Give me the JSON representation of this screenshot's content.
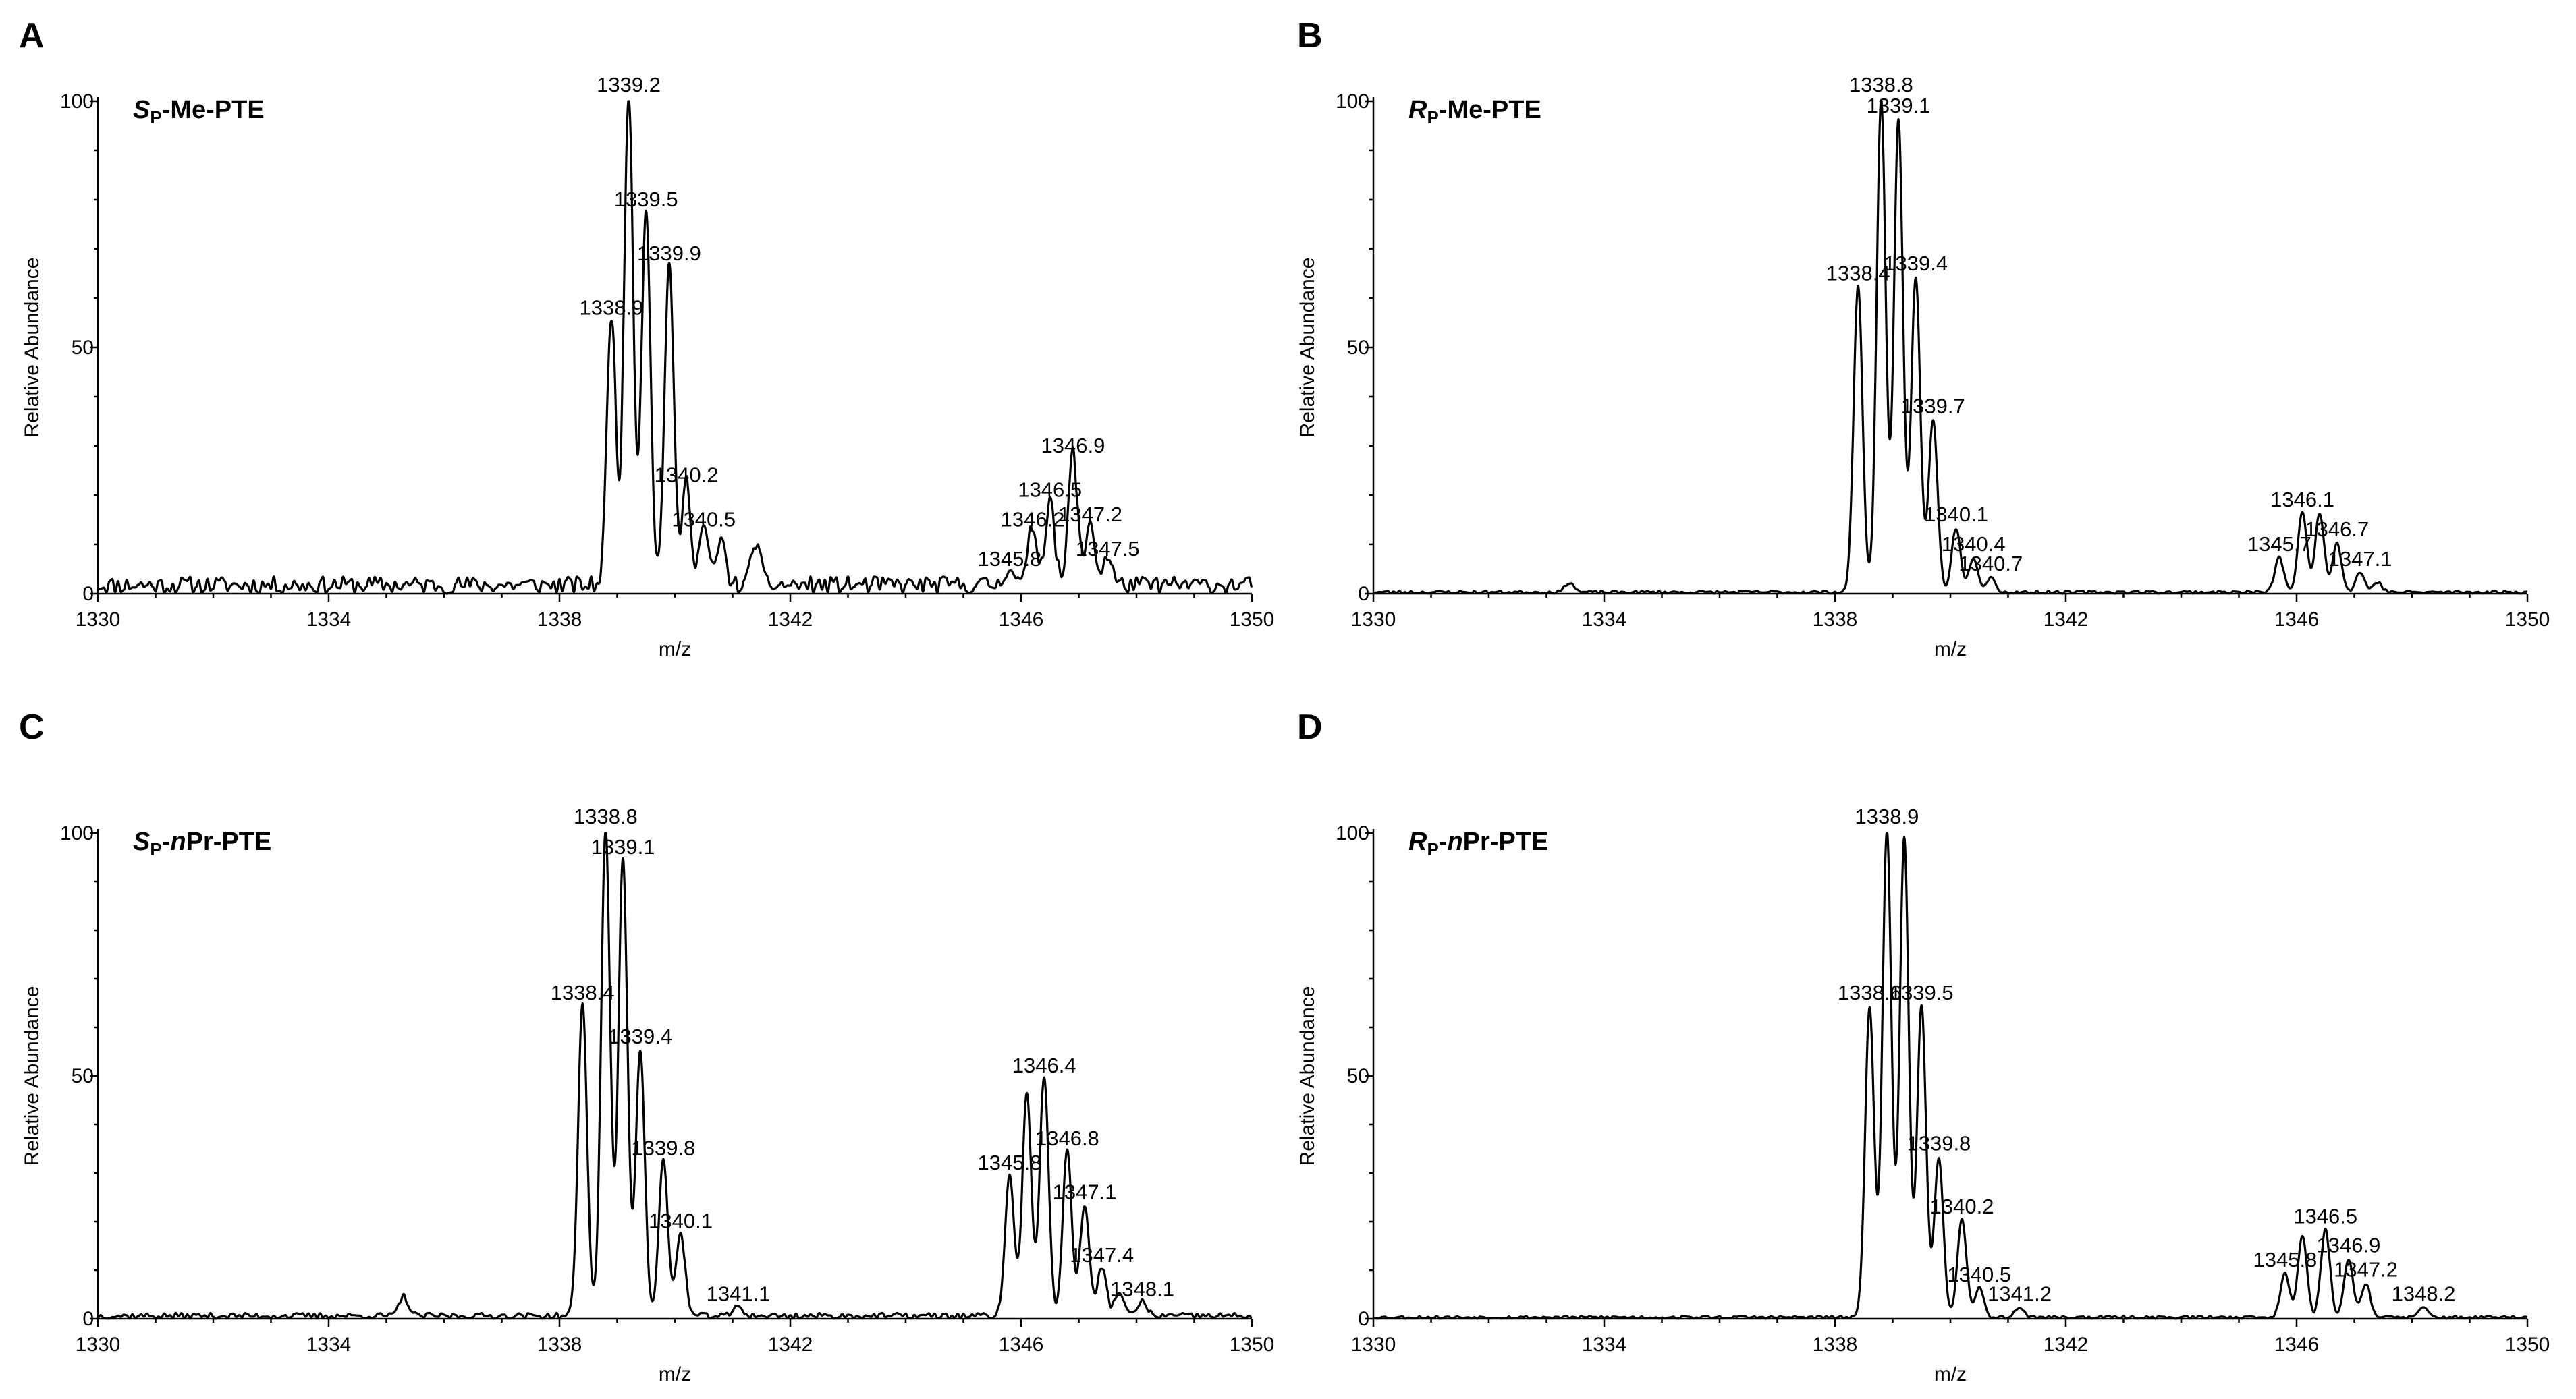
{
  "chart_data": [
    {
      "type": "line",
      "panel": "A",
      "title_parts": [
        {
          "text": "S",
          "style": "italic"
        },
        {
          "text": "P",
          "style": "sub"
        },
        {
          "text": "-Me-PTE",
          "style": "normal"
        }
      ],
      "xlabel": "m/z",
      "ylabel": "Relative Abundance",
      "xlim": [
        1330,
        1350
      ],
      "ylim": [
        0,
        100
      ],
      "xticks": [
        "1330",
        "1334",
        "1338",
        "1342",
        "1346",
        "1350"
      ],
      "yticks": [
        "0",
        "50",
        "100"
      ],
      "noise": 3.5,
      "noise_seed": 11,
      "series": [
        {
          "name": "spectrum",
          "peaks": [
            {
              "mz": 1338.9,
              "intensity": 55,
              "label": "1338.9"
            },
            {
              "mz": 1339.2,
              "intensity": 100,
              "label": "1339.2"
            },
            {
              "mz": 1339.5,
              "intensity": 77,
              "label": "1339.5"
            },
            {
              "mz": 1339.9,
              "intensity": 66,
              "label": "1339.9"
            },
            {
              "mz": 1340.2,
              "intensity": 21,
              "label": "1340.2"
            },
            {
              "mz": 1340.5,
              "intensity": 12,
              "label": "1340.5"
            },
            {
              "mz": 1340.8,
              "intensity": 9
            },
            {
              "mz": 1341.4,
              "intensity": 9
            },
            {
              "mz": 1345.8,
              "intensity": 4,
              "label": "1345.8"
            },
            {
              "mz": 1346.2,
              "intensity": 12,
              "label": "1346.2"
            },
            {
              "mz": 1346.5,
              "intensity": 18,
              "label": "1346.5"
            },
            {
              "mz": 1346.9,
              "intensity": 27,
              "label": "1346.9"
            },
            {
              "mz": 1347.2,
              "intensity": 13,
              "label": "1347.2"
            },
            {
              "mz": 1347.5,
              "intensity": 6,
              "label": "1347.5"
            }
          ]
        }
      ]
    },
    {
      "type": "line",
      "panel": "B",
      "title_parts": [
        {
          "text": "R",
          "style": "italic"
        },
        {
          "text": "P",
          "style": "sub"
        },
        {
          "text": "-Me-PTE",
          "style": "normal"
        }
      ],
      "xlabel": "m/z",
      "ylabel": "Relative Abundance",
      "xlim": [
        1330,
        1350
      ],
      "ylim": [
        0,
        100
      ],
      "xticks": [
        "1330",
        "1334",
        "1338",
        "1342",
        "1346",
        "1350"
      ],
      "yticks": [
        "0",
        "50",
        "100"
      ],
      "noise": 0.6,
      "noise_seed": 23,
      "series": [
        {
          "name": "spectrum",
          "peaks": [
            {
              "mz": 1333.4,
              "intensity": 2
            },
            {
              "mz": 1338.4,
              "intensity": 62,
              "label": "1338.4"
            },
            {
              "mz": 1338.8,
              "intensity": 100,
              "label": "1338.8"
            },
            {
              "mz": 1339.1,
              "intensity": 96,
              "label": "1339.1"
            },
            {
              "mz": 1339.4,
              "intensity": 64,
              "label": "1339.4"
            },
            {
              "mz": 1339.7,
              "intensity": 35,
              "label": "1339.7"
            },
            {
              "mz": 1340.1,
              "intensity": 13,
              "label": "1340.1"
            },
            {
              "mz": 1340.4,
              "intensity": 7,
              "label": "1340.4"
            },
            {
              "mz": 1340.7,
              "intensity": 3,
              "label": "1340.7"
            },
            {
              "mz": 1345.7,
              "intensity": 7,
              "label": "1345.7"
            },
            {
              "mz": 1346.1,
              "intensity": 16,
              "label": "1346.1"
            },
            {
              "mz": 1346.4,
              "intensity": 16
            },
            {
              "mz": 1346.7,
              "intensity": 10,
              "label": "1346.7"
            },
            {
              "mz": 1347.1,
              "intensity": 4,
              "label": "1347.1"
            },
            {
              "mz": 1347.4,
              "intensity": 2
            }
          ]
        }
      ]
    },
    {
      "type": "line",
      "panel": "C",
      "title_parts": [
        {
          "text": "S",
          "style": "italic"
        },
        {
          "text": "P",
          "style": "sub"
        },
        {
          "text": "-",
          "style": "normal"
        },
        {
          "text": "n",
          "style": "italic"
        },
        {
          "text": "Pr-PTE",
          "style": "normal"
        }
      ],
      "xlabel": "m/z",
      "ylabel": "Relative Abundance",
      "xlim": [
        1330,
        1350
      ],
      "ylim": [
        0,
        100
      ],
      "xticks": [
        "1330",
        "1334",
        "1338",
        "1342",
        "1346",
        "1350"
      ],
      "yticks": [
        "0",
        "50",
        "100"
      ],
      "noise": 1.2,
      "noise_seed": 37,
      "series": [
        {
          "name": "spectrum",
          "peaks": [
            {
              "mz": 1335.3,
              "intensity": 4
            },
            {
              "mz": 1338.4,
              "intensity": 64,
              "label": "1338.4"
            },
            {
              "mz": 1338.8,
              "intensity": 100,
              "label": "1338.8"
            },
            {
              "mz": 1339.1,
              "intensity": 94,
              "label": "1339.1"
            },
            {
              "mz": 1339.4,
              "intensity": 55,
              "label": "1339.4"
            },
            {
              "mz": 1339.8,
              "intensity": 32,
              "label": "1339.8"
            },
            {
              "mz": 1340.1,
              "intensity": 17,
              "label": "1340.1"
            },
            {
              "mz": 1341.1,
              "intensity": 2,
              "label": "1341.1"
            },
            {
              "mz": 1345.8,
              "intensity": 29,
              "label": "1345.8"
            },
            {
              "mz": 1346.1,
              "intensity": 46
            },
            {
              "mz": 1346.4,
              "intensity": 49,
              "label": "1346.4"
            },
            {
              "mz": 1346.8,
              "intensity": 34,
              "label": "1346.8"
            },
            {
              "mz": 1347.1,
              "intensity": 23,
              "label": "1347.1"
            },
            {
              "mz": 1347.4,
              "intensity": 10,
              "label": "1347.4"
            },
            {
              "mz": 1347.7,
              "intensity": 5
            },
            {
              "mz": 1348.1,
              "intensity": 3,
              "label": "1348.1"
            }
          ]
        }
      ]
    },
    {
      "type": "line",
      "panel": "D",
      "title_parts": [
        {
          "text": "R",
          "style": "italic"
        },
        {
          "text": "P",
          "style": "sub"
        },
        {
          "text": "-",
          "style": "normal"
        },
        {
          "text": "n",
          "style": "italic"
        },
        {
          "text": "Pr-PTE",
          "style": "normal"
        }
      ],
      "xlabel": "m/z",
      "ylabel": "Relative Abundance",
      "xlim": [
        1330,
        1350
      ],
      "ylim": [
        0,
        100
      ],
      "xticks": [
        "1330",
        "1334",
        "1338",
        "1342",
        "1346",
        "1350"
      ],
      "yticks": [
        "0",
        "50",
        "100"
      ],
      "noise": 0.6,
      "noise_seed": 53,
      "series": [
        {
          "name": "spectrum",
          "peaks": [
            {
              "mz": 1338.6,
              "intensity": 64,
              "label": "1338.6"
            },
            {
              "mz": 1338.9,
              "intensity": 100,
              "label": "1338.9"
            },
            {
              "mz": 1339.2,
              "intensity": 99
            },
            {
              "mz": 1339.5,
              "intensity": 64,
              "label": "1339.5"
            },
            {
              "mz": 1339.8,
              "intensity": 33,
              "label": "1339.8"
            },
            {
              "mz": 1340.2,
              "intensity": 20,
              "label": "1340.2"
            },
            {
              "mz": 1340.5,
              "intensity": 6,
              "label": "1340.5"
            },
            {
              "mz": 1341.2,
              "intensity": 2,
              "label": "1341.2"
            },
            {
              "mz": 1345.8,
              "intensity": 9,
              "label": "1345.8"
            },
            {
              "mz": 1346.1,
              "intensity": 17
            },
            {
              "mz": 1346.5,
              "intensity": 18,
              "label": "1346.5"
            },
            {
              "mz": 1346.9,
              "intensity": 12,
              "label": "1346.9"
            },
            {
              "mz": 1347.2,
              "intensity": 7,
              "label": "1347.2"
            },
            {
              "mz": 1348.2,
              "intensity": 2,
              "label": "1348.2"
            }
          ]
        }
      ]
    }
  ]
}
